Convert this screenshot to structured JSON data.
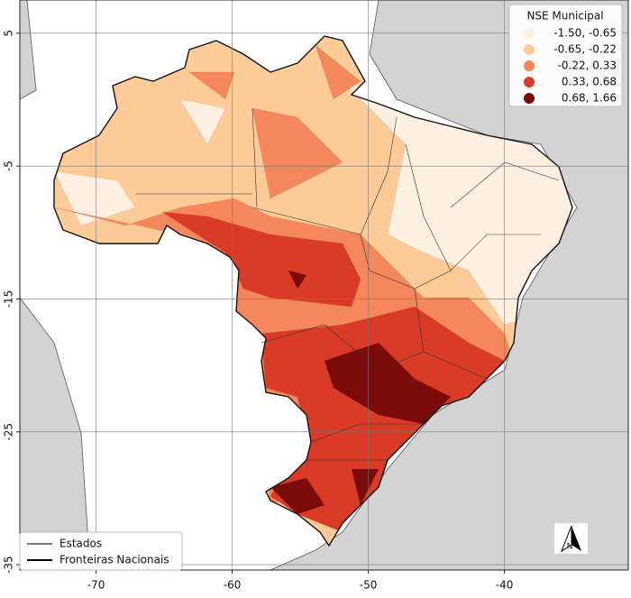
{
  "map": {
    "xlim": [
      -75.6,
      -30.9
    ],
    "ylim": [
      -35.4,
      7.5
    ],
    "xticks": [
      -70,
      -60,
      -50,
      -40
    ],
    "yticks": [
      5,
      -5,
      -15,
      -25,
      -35
    ],
    "grid": true,
    "legend": {
      "title": "NSE Municipal",
      "corner": "upper right",
      "classes": [
        {
          "label": "-1.50, -0.65",
          "color": "#fef0e1"
        },
        {
          "label": "-0.65, -0.22",
          "color": "#fdcb97"
        },
        {
          "label": "-0.22,  0.33",
          "color": "#f4875b"
        },
        {
          "label": "0.33,  0.68",
          "color": "#d93b26"
        },
        {
          "label": "0.68,  1.66",
          "color": "#7b0a0a"
        }
      ]
    },
    "line_legend": {
      "corner": "lower left",
      "items": [
        {
          "label": "Estados",
          "width": 1
        },
        {
          "label": "Fronteiras Nacionais",
          "width": 2
        }
      ]
    },
    "north_arrow": "N"
  }
}
